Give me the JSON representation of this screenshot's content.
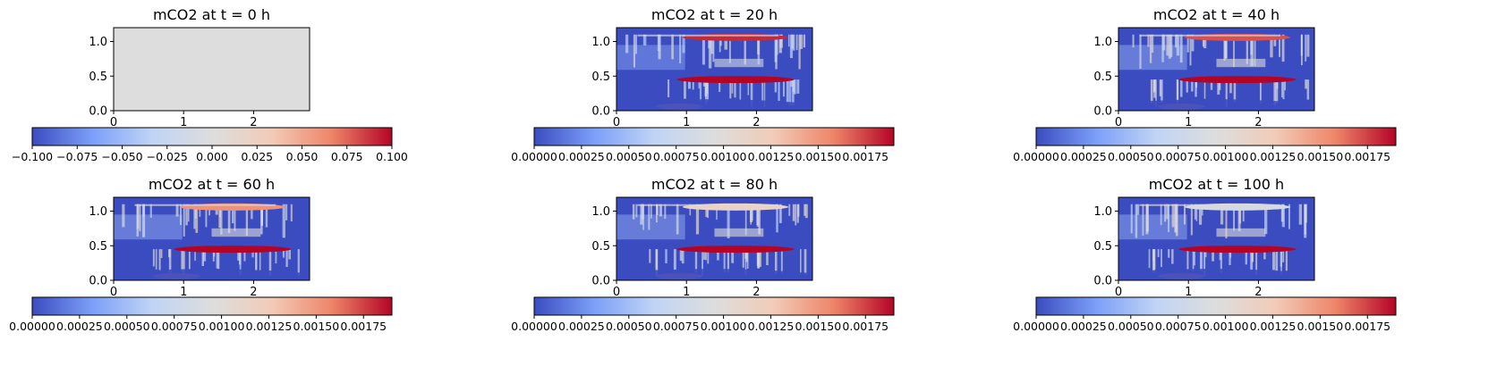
{
  "chart_data": {
    "type": "heatmap",
    "colormap": "coolwarm",
    "colormap_colors": [
      "#3b4cc0",
      "#7b9ff9",
      "#c0d4f5",
      "#dddddd",
      "#f2cbb7",
      "#ee8468",
      "#b40426"
    ],
    "panels": [
      {
        "id": "t0",
        "title": "mCO2 at t = 0 h",
        "uniform_field": true,
        "uniform_color": "#dddddd",
        "xlim": [
          0,
          2.8
        ],
        "ylim": [
          0,
          1.2
        ],
        "xticks": [
          0,
          1,
          2
        ],
        "xtick_labels": [
          "0",
          "1",
          "2"
        ],
        "yticks": [
          0,
          0.5,
          1.0
        ],
        "ytick_labels": [
          "0.0",
          "0.5",
          "1.0"
        ],
        "colorbar": {
          "range": [
            -0.1,
            0.1
          ],
          "tick_values": [
            -0.1,
            -0.075,
            -0.05,
            -0.025,
            0,
            0.025,
            0.05,
            0.075,
            0.1
          ],
          "tick_labels": [
            "−0.100",
            "−0.075",
            "−0.050",
            "−0.025",
            "0.000",
            "0.025",
            "0.050",
            "0.075",
            "0.100"
          ]
        }
      },
      {
        "id": "t20",
        "title": "mCO2 at t = 20 h",
        "uniform_field": false,
        "upper_plume_level": 0.95,
        "lower_plume_level": 1.0,
        "finger_level": 0.3,
        "xlim": [
          0,
          2.8
        ],
        "ylim": [
          0,
          1.2
        ],
        "xticks": [
          0,
          1,
          2
        ],
        "xtick_labels": [
          "0",
          "1",
          "2"
        ],
        "yticks": [
          0,
          0.5,
          1.0
        ],
        "ytick_labels": [
          "0.0",
          "0.5",
          "1.0"
        ],
        "colorbar": {
          "range": [
            0,
            0.0019
          ],
          "tick_values": [
            0,
            0.00025,
            0.0005,
            0.00075,
            0.001,
            0.00125,
            0.0015,
            0.00175
          ],
          "tick_labels": [
            "0.00000",
            "0.00025",
            "0.00050",
            "0.00075",
            "0.00100",
            "0.00125",
            "0.00150",
            "0.00175"
          ]
        }
      },
      {
        "id": "t40",
        "title": "mCO2 at t = 40 h",
        "uniform_field": false,
        "upper_plume_level": 0.9,
        "lower_plume_level": 1.0,
        "finger_level": 0.35,
        "xlim": [
          0,
          2.8
        ],
        "ylim": [
          0,
          1.2
        ],
        "xticks": [
          0,
          1,
          2
        ],
        "xtick_labels": [
          "0",
          "1",
          "2"
        ],
        "yticks": [
          0,
          0.5,
          1.0
        ],
        "ytick_labels": [
          "0.0",
          "0.5",
          "1.0"
        ],
        "colorbar": {
          "range": [
            0,
            0.0019
          ],
          "tick_values": [
            0,
            0.00025,
            0.0005,
            0.00075,
            0.001,
            0.00125,
            0.0015,
            0.00175
          ],
          "tick_labels": [
            "0.00000",
            "0.00025",
            "0.00050",
            "0.00075",
            "0.00100",
            "0.00125",
            "0.00150",
            "0.00175"
          ]
        }
      },
      {
        "id": "t60",
        "title": "mCO2 at t = 60 h",
        "uniform_field": false,
        "upper_plume_level": 0.8,
        "lower_plume_level": 1.0,
        "finger_level": 0.35,
        "xlim": [
          0,
          2.8
        ],
        "ylim": [
          0,
          1.2
        ],
        "xticks": [
          0,
          1,
          2
        ],
        "xtick_labels": [
          "0",
          "1",
          "2"
        ],
        "yticks": [
          0,
          0.5,
          1.0
        ],
        "ytick_labels": [
          "0.0",
          "0.5",
          "1.0"
        ],
        "colorbar": {
          "range": [
            0,
            0.0019
          ],
          "tick_values": [
            0,
            0.00025,
            0.0005,
            0.00075,
            0.001,
            0.00125,
            0.0015,
            0.00175
          ],
          "tick_labels": [
            "0.00000",
            "0.00025",
            "0.00050",
            "0.00075",
            "0.00100",
            "0.00125",
            "0.00150",
            "0.00175"
          ]
        }
      },
      {
        "id": "t80",
        "title": "mCO2 at t = 80 h",
        "uniform_field": false,
        "upper_plume_level": 0.6,
        "lower_plume_level": 1.0,
        "finger_level": 0.35,
        "xlim": [
          0,
          2.8
        ],
        "ylim": [
          0,
          1.2
        ],
        "xticks": [
          0,
          1,
          2
        ],
        "xtick_labels": [
          "0",
          "1",
          "2"
        ],
        "yticks": [
          0,
          0.5,
          1.0
        ],
        "ytick_labels": [
          "0.0",
          "0.5",
          "1.0"
        ],
        "colorbar": {
          "range": [
            0,
            0.0019
          ],
          "tick_values": [
            0,
            0.00025,
            0.0005,
            0.00075,
            0.001,
            0.00125,
            0.0015,
            0.00175
          ],
          "tick_labels": [
            "0.00000",
            "0.00025",
            "0.00050",
            "0.00075",
            "0.00100",
            "0.00125",
            "0.00150",
            "0.00175"
          ]
        }
      },
      {
        "id": "t100",
        "title": "mCO2 at t = 100 h",
        "uniform_field": false,
        "upper_plume_level": 0.45,
        "lower_plume_level": 1.0,
        "finger_level": 0.35,
        "xlim": [
          0,
          2.8
        ],
        "ylim": [
          0,
          1.2
        ],
        "xticks": [
          0,
          1,
          2
        ],
        "xtick_labels": [
          "0",
          "1",
          "2"
        ],
        "yticks": [
          0,
          0.5,
          1.0
        ],
        "ytick_labels": [
          "0.0",
          "0.5",
          "1.0"
        ],
        "colorbar": {
          "range": [
            0,
            0.0019
          ],
          "tick_values": [
            0,
            0.00025,
            0.0005,
            0.00075,
            0.001,
            0.00125,
            0.0015,
            0.00175
          ],
          "tick_labels": [
            "0.00000",
            "0.00025",
            "0.00050",
            "0.00075",
            "0.00100",
            "0.00125",
            "0.00150",
            "0.00175"
          ]
        }
      }
    ]
  }
}
